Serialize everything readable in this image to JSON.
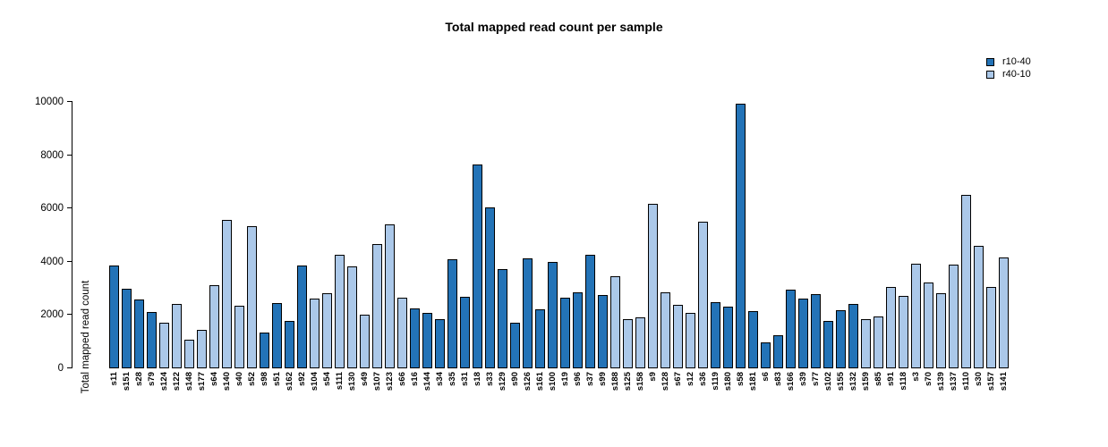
{
  "title": "Total mapped read count per sample",
  "chart_data": {
    "type": "bar",
    "title": "Total mapped read count per sample",
    "xlabel": "",
    "ylabel": "Total mapped read count",
    "ylim": [
      0,
      10000
    ],
    "yticks": [
      0,
      2000,
      4000,
      6000,
      8000,
      10000
    ],
    "grid": false,
    "legend_position": "top-right",
    "groups": [
      {
        "name": "r10-40",
        "color": "#2373b7"
      },
      {
        "name": "r40-10",
        "color": "#abc8e9"
      }
    ],
    "bar_border_color": "#000000",
    "samples": [
      {
        "label": "s11",
        "value": 3870,
        "group": "r10-40"
      },
      {
        "label": "s151",
        "value": 2980,
        "group": "r10-40"
      },
      {
        "label": "s28",
        "value": 2570,
        "group": "r10-40"
      },
      {
        "label": "s79",
        "value": 2100,
        "group": "r10-40"
      },
      {
        "label": "s124",
        "value": 1720,
        "group": "r40-10"
      },
      {
        "label": "s122",
        "value": 2410,
        "group": "r40-10"
      },
      {
        "label": "s148",
        "value": 1080,
        "group": "r40-10"
      },
      {
        "label": "s177",
        "value": 1440,
        "group": "r40-10"
      },
      {
        "label": "s64",
        "value": 3120,
        "group": "r40-10"
      },
      {
        "label": "s140",
        "value": 5560,
        "group": "r40-10"
      },
      {
        "label": "s40",
        "value": 2340,
        "group": "r40-10"
      },
      {
        "label": "s52",
        "value": 5330,
        "group": "r40-10"
      },
      {
        "label": "s98",
        "value": 1350,
        "group": "r10-40"
      },
      {
        "label": "s51",
        "value": 2440,
        "group": "r10-40"
      },
      {
        "label": "s162",
        "value": 1770,
        "group": "r10-40"
      },
      {
        "label": "s92",
        "value": 3850,
        "group": "r10-40"
      },
      {
        "label": "s104",
        "value": 2630,
        "group": "r40-10"
      },
      {
        "label": "s54",
        "value": 2820,
        "group": "r40-10"
      },
      {
        "label": "s111",
        "value": 4270,
        "group": "r40-10"
      },
      {
        "label": "s130",
        "value": 3820,
        "group": "r40-10"
      },
      {
        "label": "s49",
        "value": 2000,
        "group": "r40-10"
      },
      {
        "label": "s107",
        "value": 4670,
        "group": "r40-10"
      },
      {
        "label": "s123",
        "value": 5390,
        "group": "r40-10"
      },
      {
        "label": "s66",
        "value": 2640,
        "group": "r40-10"
      },
      {
        "label": "s16",
        "value": 2260,
        "group": "r10-40"
      },
      {
        "label": "s144",
        "value": 2090,
        "group": "r10-40"
      },
      {
        "label": "s34",
        "value": 1840,
        "group": "r10-40"
      },
      {
        "label": "s35",
        "value": 4080,
        "group": "r10-40"
      },
      {
        "label": "s31",
        "value": 2670,
        "group": "r10-40"
      },
      {
        "label": "s18",
        "value": 7660,
        "group": "r10-40"
      },
      {
        "label": "s33",
        "value": 6030,
        "group": "r10-40"
      },
      {
        "label": "s129",
        "value": 3720,
        "group": "r10-40"
      },
      {
        "label": "s90",
        "value": 1700,
        "group": "r10-40"
      },
      {
        "label": "s126",
        "value": 4120,
        "group": "r10-40"
      },
      {
        "label": "s161",
        "value": 2230,
        "group": "r10-40"
      },
      {
        "label": "s100",
        "value": 3980,
        "group": "r10-40"
      },
      {
        "label": "s19",
        "value": 2640,
        "group": "r10-40"
      },
      {
        "label": "s96",
        "value": 2840,
        "group": "r10-40"
      },
      {
        "label": "s37",
        "value": 4270,
        "group": "r10-40"
      },
      {
        "label": "s99",
        "value": 2760,
        "group": "r10-40"
      },
      {
        "label": "s188",
        "value": 3460,
        "group": "r40-10"
      },
      {
        "label": "s125",
        "value": 1840,
        "group": "r40-10"
      },
      {
        "label": "s158",
        "value": 1910,
        "group": "r40-10"
      },
      {
        "label": "s9",
        "value": 6160,
        "group": "r40-10"
      },
      {
        "label": "s128",
        "value": 2850,
        "group": "r40-10"
      },
      {
        "label": "s67",
        "value": 2370,
        "group": "r40-10"
      },
      {
        "label": "s12",
        "value": 2090,
        "group": "r40-10"
      },
      {
        "label": "s36",
        "value": 5490,
        "group": "r40-10"
      },
      {
        "label": "s119",
        "value": 2480,
        "group": "r10-40"
      },
      {
        "label": "s180",
        "value": 2330,
        "group": "r10-40"
      },
      {
        "label": "s58",
        "value": 9940,
        "group": "r10-40"
      },
      {
        "label": "s181",
        "value": 2140,
        "group": "r10-40"
      },
      {
        "label": "s6",
        "value": 970,
        "group": "r10-40"
      },
      {
        "label": "s83",
        "value": 1250,
        "group": "r10-40"
      },
      {
        "label": "s166",
        "value": 2960,
        "group": "r10-40"
      },
      {
        "label": "s39",
        "value": 2610,
        "group": "r10-40"
      },
      {
        "label": "s77",
        "value": 2780,
        "group": "r10-40"
      },
      {
        "label": "s102",
        "value": 1770,
        "group": "r10-40"
      },
      {
        "label": "s155",
        "value": 2170,
        "group": "r10-40"
      },
      {
        "label": "s132",
        "value": 2410,
        "group": "r10-40"
      },
      {
        "label": "s159",
        "value": 1850,
        "group": "r40-10"
      },
      {
        "label": "s85",
        "value": 1940,
        "group": "r40-10"
      },
      {
        "label": "s91",
        "value": 3040,
        "group": "r40-10"
      },
      {
        "label": "s118",
        "value": 2710,
        "group": "r40-10"
      },
      {
        "label": "s3",
        "value": 3940,
        "group": "r40-10"
      },
      {
        "label": "s70",
        "value": 3230,
        "group": "r40-10"
      },
      {
        "label": "s139",
        "value": 2820,
        "group": "r40-10"
      },
      {
        "label": "s137",
        "value": 3900,
        "group": "r40-10"
      },
      {
        "label": "s110",
        "value": 6500,
        "group": "r40-10"
      },
      {
        "label": "s30",
        "value": 4600,
        "group": "r40-10"
      },
      {
        "label": "s157",
        "value": 3040,
        "group": "r40-10"
      },
      {
        "label": "s141",
        "value": 4150,
        "group": "r40-10"
      }
    ]
  }
}
